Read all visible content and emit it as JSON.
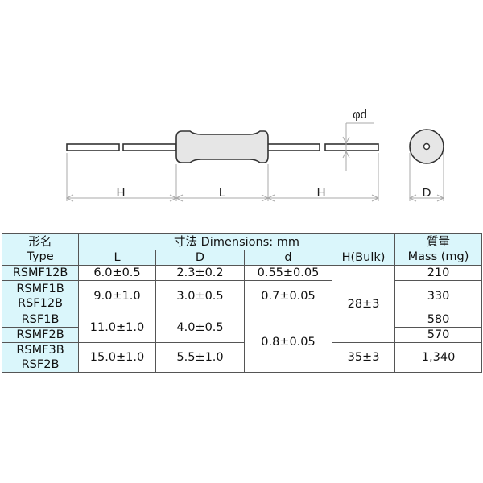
{
  "diagram": {
    "labels": {
      "lead_length_left": "H",
      "body_length": "L",
      "lead_length_right": "H",
      "lead_diameter": "φd",
      "body_diameter": "D"
    },
    "colors": {
      "body_fill": "#e6e6e6",
      "outline": "#333333"
    }
  },
  "table": {
    "header": {
      "type_ja": "形名",
      "type_en": "Type",
      "dimensions": "寸法 Dimensions: mm",
      "mass_ja": "質量",
      "mass_en": "Mass (mg)",
      "cols": [
        "L",
        "D",
        "d",
        "H(Bulk)"
      ]
    },
    "rows": [
      {
        "type": [
          "RSMF12B"
        ],
        "L": "6.0±0.5",
        "D": "2.3±0.2",
        "d": "0.55±0.05",
        "H": "28±3",
        "mass": "210"
      },
      {
        "type": [
          "RSMF1B",
          "RSF12B"
        ],
        "L": "9.0±1.0",
        "D": "3.0±0.5",
        "d": "0.7±0.05",
        "mass": "330"
      },
      {
        "type": [
          "RSF1B"
        ],
        "L": "11.0±1.0",
        "D": "4.0±0.5",
        "d": "0.8±0.05",
        "mass": "580"
      },
      {
        "type": [
          "RSMF2B"
        ],
        "mass": "570"
      },
      {
        "type": [
          "RSMF3B",
          "RSF2B"
        ],
        "L": "15.0±1.0",
        "D": "5.5±1.0",
        "H": "35±3",
        "mass": "1,340"
      }
    ],
    "colors": {
      "header_bg": "#daf6fb",
      "border": "#555555"
    }
  }
}
